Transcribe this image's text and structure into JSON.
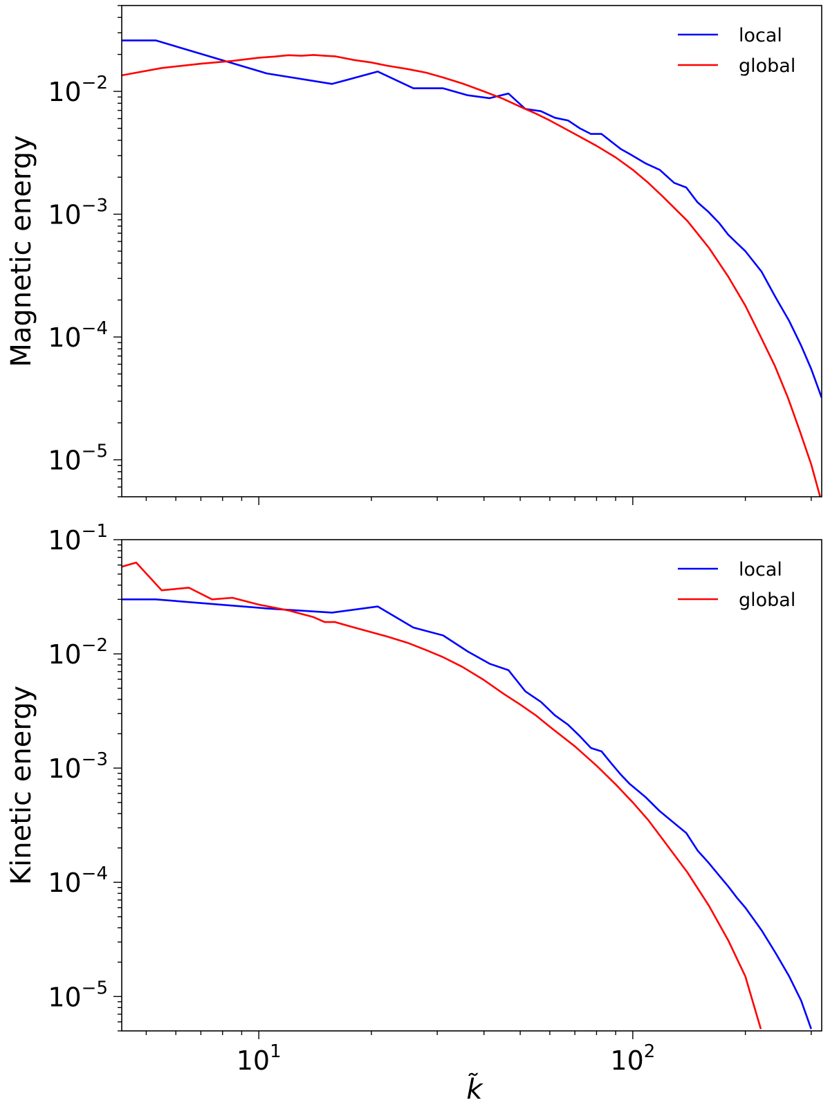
{
  "colors": {
    "local": "#0000ff",
    "global": "#ff0000"
  },
  "x_tick_labels": [
    {
      "base": "10",
      "exp": "1",
      "value": 10
    },
    {
      "base": "10",
      "exp": "2",
      "value": 100
    }
  ],
  "x_axis_label": "k̃",
  "chart_data": [
    {
      "type": "line",
      "xscale": "log",
      "yscale": "log",
      "xlim": [
        4.3,
        320
      ],
      "ylim": [
        5e-06,
        0.05
      ],
      "ylabel": "Magnetic energy",
      "xlabel": "",
      "legend": "top-right",
      "y_tick_labels": [
        {
          "base": "10",
          "exp": "−2",
          "value": 0.01
        },
        {
          "base": "10",
          "exp": "−3",
          "value": 0.001
        },
        {
          "base": "10",
          "exp": "−4",
          "value": 0.0001
        },
        {
          "base": "10",
          "exp": "−5",
          "value": 1e-05
        }
      ],
      "series": [
        {
          "name": "local",
          "color": "#0000ff",
          "x": [
            4.3,
            5.3,
            10.5,
            15.7,
            20.8,
            25.9,
            31.1,
            36.2,
            41.4,
            46.5,
            51.6,
            56.8,
            61.9,
            67.1,
            72.2,
            77.3,
            82.5,
            87.6,
            92.8,
            98.0,
            108,
            118,
            129,
            139,
            149,
            159,
            170,
            180,
            190,
            200,
            221,
            241,
            262,
            282,
            300,
            320
          ],
          "y": [
            0.026,
            0.026,
            0.014,
            0.0115,
            0.0145,
            0.0106,
            0.0106,
            0.0093,
            0.0088,
            0.0096,
            0.0072,
            0.0069,
            0.0061,
            0.0058,
            0.005,
            0.0045,
            0.0045,
            0.0039,
            0.0034,
            0.0031,
            0.0026,
            0.0023,
            0.0018,
            0.00165,
            0.00125,
            0.00105,
            0.00085,
            0.00068,
            0.00058,
            0.0005,
            0.00034,
            0.00021,
            0.000135,
            8.5e-05,
            5.5e-05,
            3.2e-05
          ]
        },
        {
          "name": "global",
          "color": "#ff0000",
          "x": [
            4.3,
            5.5,
            7,
            8.5,
            10,
            11,
            12,
            13,
            14,
            15,
            16,
            18,
            20,
            22,
            25,
            28,
            31,
            35,
            40,
            45,
            50,
            55,
            60,
            70,
            80,
            90,
            100,
            110,
            120,
            140,
            160,
            180,
            200,
            220,
            240,
            260,
            280,
            300,
            320
          ],
          "y": [
            0.0135,
            0.0155,
            0.0168,
            0.0177,
            0.0188,
            0.0192,
            0.0197,
            0.0195,
            0.0198,
            0.0195,
            0.0193,
            0.018,
            0.0172,
            0.0162,
            0.0152,
            0.0142,
            0.013,
            0.0116,
            0.01,
            0.0087,
            0.0075,
            0.0066,
            0.0058,
            0.0045,
            0.0036,
            0.0029,
            0.0023,
            0.0018,
            0.0014,
            0.00088,
            0.00053,
            0.00031,
            0.00018,
            0.0001,
            5.8e-05,
            3.2e-05,
            1.7e-05,
            9.2e-06,
            4.5e-06
          ]
        }
      ]
    },
    {
      "type": "line",
      "xscale": "log",
      "yscale": "log",
      "xlim": [
        4.3,
        320
      ],
      "ylim": [
        5e-06,
        0.1
      ],
      "ylabel": "Kinetic energy",
      "xlabel": "k̃",
      "legend": "top-right",
      "y_tick_labels": [
        {
          "base": "10",
          "exp": "−1",
          "value": 0.1
        },
        {
          "base": "10",
          "exp": "−2",
          "value": 0.01
        },
        {
          "base": "10",
          "exp": "−3",
          "value": 0.001
        },
        {
          "base": "10",
          "exp": "−4",
          "value": 0.0001
        },
        {
          "base": "10",
          "exp": "−5",
          "value": 1e-05
        }
      ],
      "series": [
        {
          "name": "local",
          "color": "#0000ff",
          "x": [
            4.3,
            5.3,
            10.5,
            15.7,
            20.8,
            25.9,
            31.1,
            36.2,
            41.4,
            46.5,
            51.6,
            56.8,
            61.9,
            67.1,
            72.2,
            77.3,
            82.5,
            87.6,
            92.8,
            98.0,
            108,
            118,
            129,
            139,
            149,
            159,
            170,
            180,
            190,
            200,
            221,
            241,
            262,
            282,
            300
          ],
          "y": [
            0.03,
            0.03,
            0.025,
            0.023,
            0.026,
            0.017,
            0.0145,
            0.0105,
            0.0082,
            0.0072,
            0.0047,
            0.0038,
            0.0029,
            0.0024,
            0.0019,
            0.0015,
            0.0014,
            0.0011,
            0.00088,
            0.00073,
            0.00056,
            0.00042,
            0.00033,
            0.00027,
            0.00019,
            0.00015,
            0.000115,
            9.2e-05,
            7.3e-05,
            6e-05,
            3.8e-05,
            2.4e-05,
            1.5e-05,
            9.2e-06,
            5.2e-06
          ]
        },
        {
          "name": "global",
          "color": "#ff0000",
          "x": [
            4.3,
            4.7,
            5.5,
            6.5,
            7.5,
            8.5,
            10,
            12,
            14,
            15,
            16,
            18,
            20,
            22,
            25,
            28,
            31,
            35,
            40,
            45,
            50,
            55,
            60,
            70,
            80,
            90,
            100,
            110,
            120,
            140,
            160,
            180,
            200,
            220
          ],
          "y": [
            0.058,
            0.063,
            0.036,
            0.038,
            0.03,
            0.031,
            0.027,
            0.024,
            0.021,
            0.019,
            0.019,
            0.017,
            0.0155,
            0.0142,
            0.0125,
            0.0108,
            0.0094,
            0.0077,
            0.0059,
            0.0045,
            0.0036,
            0.0029,
            0.0023,
            0.00155,
            0.00105,
            0.00072,
            0.0005,
            0.00035,
            0.00024,
            0.000122,
            6.2e-05,
            3.1e-05,
            1.5e-05,
            5.2e-06
          ]
        }
      ]
    }
  ]
}
